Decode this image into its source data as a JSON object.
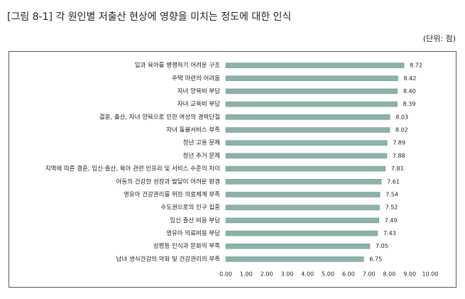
{
  "chart_data": {
    "type": "hbar",
    "title": "[그림 8-1] 각 원인별 저출산 현상에 영향을 미치는 정도에 대한 인식",
    "unit": "(단위: 점)",
    "categories": [
      "일과 육아를 병행하기 어려운 구조",
      "주택 마련의 어려움",
      "자녀 양육비 부담",
      "자녀 교육비 부담",
      "결혼, 출산, 자녀 양육으로 인한 여성의 경력단절",
      "자녀 돌봄서비스 부족",
      "청년 고용 문제",
      "청년 주거 문제",
      "지역에 따른 결혼, 임신·출산, 육아 관련 인프라 및 서비스 수준의 차이",
      "아동의 건강한 성장과 발달이 어려운 환경",
      "영유아 건강관리를 위한 의료체계 부족",
      "수도권으로의 인구 집중",
      "임신 출산 비용 부담",
      "영유아 의료비용 부담",
      "성평등 인식과 문화의 부족",
      "남녀 생식건강의 악화 및 건강관리의 부족"
    ],
    "values": [
      8.72,
      8.42,
      8.4,
      8.39,
      8.03,
      8.02,
      7.89,
      7.88,
      7.81,
      7.61,
      7.54,
      7.52,
      7.49,
      7.43,
      7.05,
      6.75
    ],
    "value_labels": [
      "8.72",
      "8.42",
      "8.40",
      "8.39",
      "8.03",
      "8.02",
      "7.89",
      "7.88",
      "7.81",
      "7.61",
      "7.54",
      "7.52",
      "7.49",
      "7.43",
      "7.05",
      "6.75"
    ],
    "color": "#8db1ab",
    "xlim": [
      0,
      10
    ],
    "xticks": [
      {
        "value": 0,
        "label": "0.00"
      },
      {
        "value": 1,
        "label": "1.00"
      },
      {
        "value": 2,
        "label": "2.00"
      },
      {
        "value": 3,
        "label": "3.00"
      },
      {
        "value": 4,
        "label": "4.00"
      },
      {
        "value": 5,
        "label": "5.00"
      },
      {
        "value": 6,
        "label": "6.00"
      },
      {
        "value": 7,
        "label": "7.00"
      },
      {
        "value": 8,
        "label": "8.00"
      },
      {
        "value": 9,
        "label": "9.00"
      },
      {
        "value": 10,
        "label": "10.00"
      }
    ]
  }
}
